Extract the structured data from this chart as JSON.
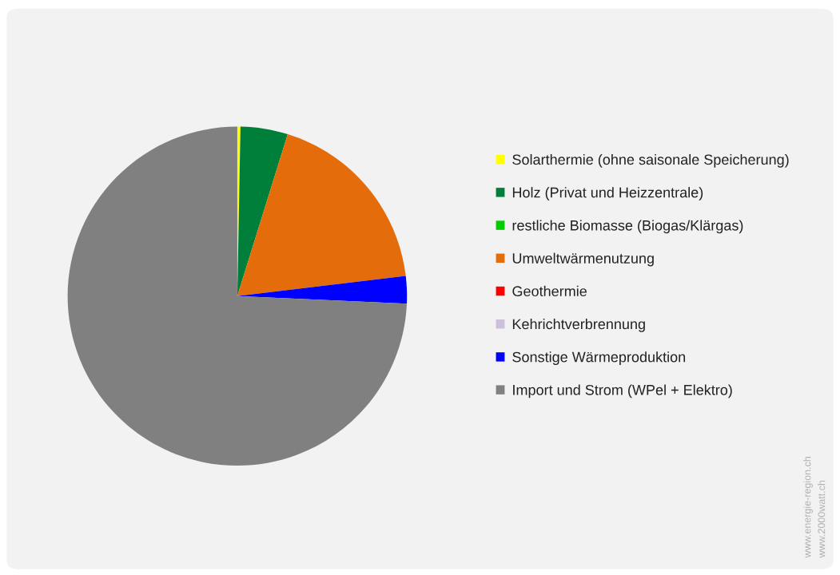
{
  "chart_data": {
    "type": "pie",
    "categories": [
      "Solarthermie (ohne saisonale Speicherung)",
      "Holz (Privat und Heizzentrale)",
      "restliche Biomasse (Biogas/Klärgas)",
      "Umweltwärmenutzung",
      "Geothermie",
      "Kehrichtverbrennung",
      "Sonstige Wärmeproduktion",
      "Import und Strom (WPel + Elektro)"
    ],
    "values": [
      0.3,
      4.5,
      0,
      18.3,
      0,
      0,
      2.6,
      74.3
    ],
    "colors": [
      "#ffff00",
      "#007f3a",
      "#00cc00",
      "#e46c0a",
      "#ff0000",
      "#ccc0da",
      "#0000ff",
      "#808080"
    ],
    "legend": "right",
    "annotations": [
      "www.energie-region.ch",
      "www.2000watt.ch"
    ]
  }
}
